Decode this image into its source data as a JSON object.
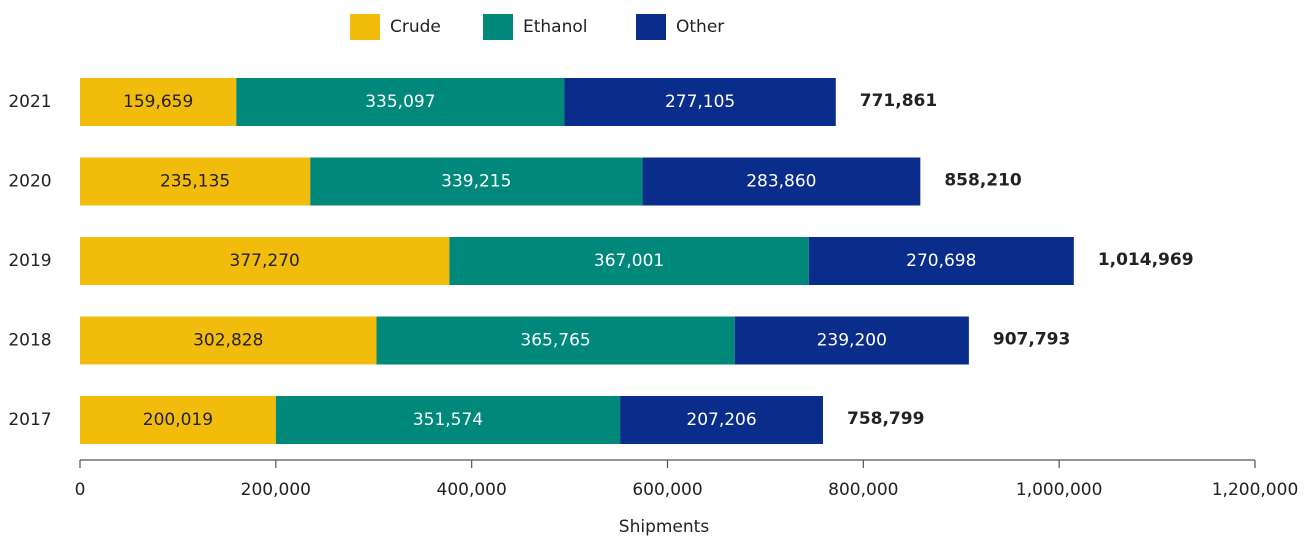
{
  "chart_data": {
    "type": "stacked-bar-horizontal",
    "categories": [
      "2021",
      "2020",
      "2019",
      "2018",
      "2017"
    ],
    "series": [
      {
        "name": "Crude",
        "color": "#f2bc0c",
        "values": [
          159659,
          235135,
          377270,
          302828,
          200019
        ],
        "value_labels": [
          "159,659",
          "235,135",
          "377,270",
          "302,828",
          "200,019"
        ]
      },
      {
        "name": "Ethanol",
        "color": "#00897b",
        "values": [
          335097,
          339215,
          367001,
          365765,
          351574
        ],
        "value_labels": [
          "335,097",
          "339,215",
          "367,001",
          "365,765",
          "351,574"
        ]
      },
      {
        "name": "Other",
        "color": "#0a2d8c",
        "values": [
          277105,
          283860,
          270698,
          239200,
          207206
        ],
        "value_labels": [
          "277,105",
          "283,860",
          "270,698",
          "239,200",
          "207,206"
        ]
      }
    ],
    "totals": [
      771861,
      858210,
      1014969,
      907793,
      758799
    ],
    "total_labels": [
      "771,861",
      "858,210",
      "1,014,969",
      "907,793",
      "758,799"
    ],
    "xlim": [
      0,
      1200000
    ],
    "xticks": [
      0,
      {
        "value": 200000,
        "label": "200,000"
      },
      {
        "value": 400000,
        "label": "400,000"
      },
      {
        "value": 600000,
        "label": "600,000"
      },
      {
        "value": 800000,
        "label": "800,000"
      },
      {
        "value": 1000000,
        "label": "1,000,000"
      },
      {
        "value": 1200000,
        "label": "1,200,000"
      }
    ],
    "x_label": "Shipments"
  }
}
